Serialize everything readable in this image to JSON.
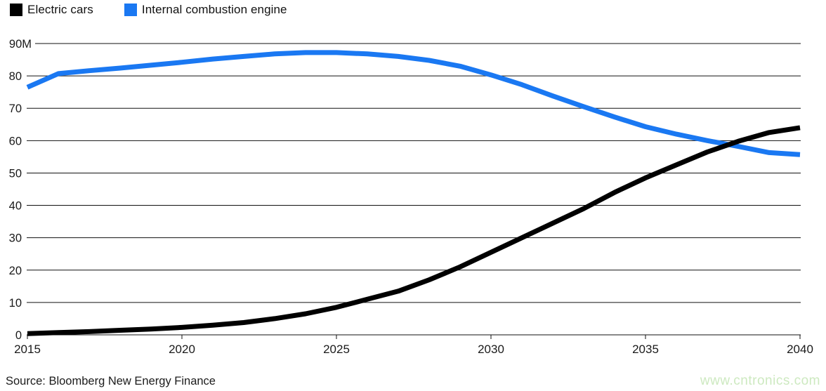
{
  "legend": [
    {
      "label": "Electric cars",
      "color": "#000000",
      "icon": "black-square-swatch"
    },
    {
      "label": "Internal combustion engine",
      "color": "#1a78f2",
      "icon": "blue-square-swatch"
    }
  ],
  "source": "Source: Bloomberg New Energy Finance",
  "watermark": "www.cntronics.com",
  "colors": {
    "electric": "#000000",
    "ice": "#1a78f2",
    "grid": "#111111",
    "axis_text": "#1a1a1a",
    "watermark": "#cde9c0",
    "background": "#ffffff"
  },
  "chart_data": {
    "type": "line",
    "title": "",
    "xlabel": "",
    "ylabel": "",
    "unit": "M (millions of vehicles per year)",
    "x": [
      2015,
      2016,
      2017,
      2018,
      2019,
      2020,
      2021,
      2022,
      2023,
      2024,
      2025,
      2026,
      2027,
      2028,
      2029,
      2030,
      2031,
      2032,
      2033,
      2034,
      2035,
      2036,
      2037,
      2038,
      2039,
      2040
    ],
    "series": [
      {
        "name": "Electric cars",
        "color": "#000000",
        "values": [
          0.4,
          0.7,
          1.0,
          1.4,
          1.8,
          2.3,
          3.0,
          3.8,
          5.0,
          6.5,
          8.5,
          11.0,
          13.5,
          17.0,
          21.0,
          25.5,
          30.0,
          34.5,
          39.0,
          44.0,
          48.5,
          52.5,
          56.5,
          59.8,
          62.5,
          64.0
        ]
      },
      {
        "name": "Internal combustion engine",
        "color": "#1a78f2",
        "values": [
          76.5,
          80.7,
          81.6,
          82.4,
          83.3,
          84.2,
          85.2,
          86.0,
          86.8,
          87.2,
          87.2,
          86.8,
          86.0,
          84.8,
          83.0,
          80.3,
          77.3,
          73.8,
          70.5,
          67.3,
          64.3,
          62.0,
          60.0,
          58.2,
          56.3,
          55.7
        ]
      }
    ],
    "ylim": [
      0,
      90
    ],
    "y_ticks": [
      {
        "v": 0,
        "label": "0"
      },
      {
        "v": 10,
        "label": "10"
      },
      {
        "v": 20,
        "label": "20"
      },
      {
        "v": 30,
        "label": "30"
      },
      {
        "v": 40,
        "label": "40"
      },
      {
        "v": 50,
        "label": "50"
      },
      {
        "v": 60,
        "label": "60"
      },
      {
        "v": 70,
        "label": "70"
      },
      {
        "v": 80,
        "label": "80"
      },
      {
        "v": 90,
        "label": "90M"
      }
    ],
    "x_ticks": [
      "2015",
      "2020",
      "2025",
      "2030",
      "2035",
      "2040"
    ],
    "grid": "horizontal",
    "legend_position": "top-left"
  }
}
